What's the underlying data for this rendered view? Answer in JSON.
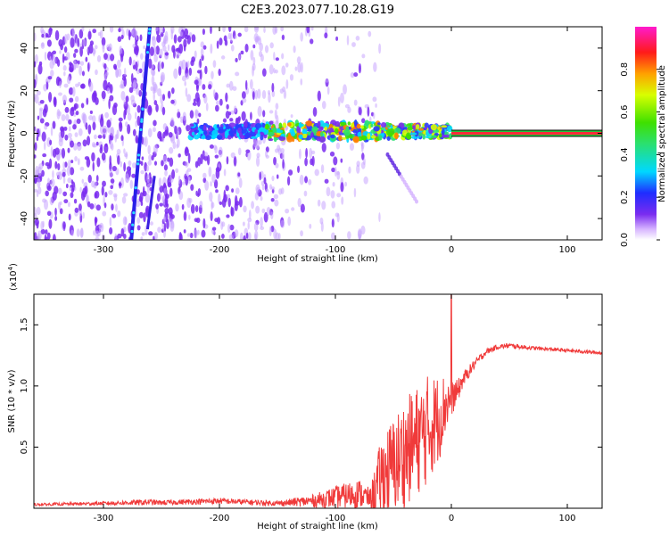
{
  "title": "C2E3.2023.077.10.28.G19",
  "colors": {
    "snr_line": "#f03a3a",
    "axis": "#000000",
    "speck": "#7a2cf0",
    "band_center": "#ff2a3a",
    "band_outer": "#27c23a"
  },
  "chart_data": [
    {
      "type": "heatmap",
      "name": "spectrogram",
      "xlabel": "Height of straight line (km)",
      "ylabel": "Frequency (Hz)",
      "xlim": [
        -360,
        130
      ],
      "ylim": [
        -50,
        50
      ],
      "xticks": [
        -300,
        -200,
        -100,
        0,
        100
      ],
      "yticks": [
        -40,
        -20,
        0,
        20,
        40
      ],
      "xtick_labels": [
        "-300",
        "-200",
        "-100",
        "0",
        "100"
      ],
      "ytick_labels": [
        "-40",
        "-20",
        "0",
        "20",
        "40"
      ],
      "colorbar": {
        "label": "Normalized spectral amplitude",
        "range": [
          0,
          1
        ],
        "ticks": [
          0.0,
          0.2,
          0.4,
          0.6,
          0.8
        ],
        "tick_labels": [
          "0.0",
          "0.2",
          "0.4",
          "0.6",
          "0.8"
        ]
      },
      "features": [
        {
          "name": "scatter noise",
          "x_range": [
            -360,
            -100
          ],
          "y_range": [
            -50,
            50
          ],
          "amplitude": 0.1
        },
        {
          "name": "sloped streak",
          "x_start": -276,
          "x_end": -260,
          "y_start": -50,
          "y_end": 50,
          "amplitude": 0.3
        },
        {
          "name": "secondary streak",
          "x_start": -262,
          "x_end": -256,
          "y_start": -45,
          "y_end": -20,
          "amplitude": 0.2
        },
        {
          "name": "carrier band",
          "x_range": [
            -225,
            0
          ],
          "center_freq": 1,
          "amplitude": 0.45
        },
        {
          "name": "tail branch",
          "x_start": -55,
          "x_end": -30,
          "y_start": -10,
          "y_end": -32,
          "amplitude": 0.15
        },
        {
          "name": "steady carrier",
          "x_range": [
            0,
            130
          ],
          "center_freq": 0,
          "amplitude": 0.98
        }
      ]
    },
    {
      "type": "line",
      "name": "snr",
      "xlabel": "Height of straight line (km)",
      "ylabel": "SNR (10 * v/v)",
      "exponent_label": "(x10",
      "exponent_power": "4",
      "exponent_close": ")",
      "xlim": [
        -360,
        130
      ],
      "ylim": [
        0,
        17500
      ],
      "xticks": [
        -300,
        -200,
        -100,
        0,
        100
      ],
      "yticks": [
        5000,
        10000,
        15000
      ],
      "xtick_labels": [
        "-300",
        "-200",
        "-100",
        "0",
        "100"
      ],
      "ytick_labels": [
        "0.5",
        "1.0",
        "1.5"
      ],
      "series": [
        {
          "name": "SNR",
          "x": [
            -360,
            -300,
            -260,
            -250,
            -200,
            -150,
            -120,
            -100,
            -80,
            -70,
            -60,
            -50,
            -40,
            -30,
            -20,
            -10,
            -5,
            0,
            5,
            10,
            20,
            30,
            40,
            50,
            70,
            100,
            130
          ],
          "y": [
            300,
            400,
            500,
            450,
            600,
            400,
            600,
            900,
            1200,
            800,
            2500,
            3500,
            4500,
            5500,
            6500,
            7500,
            8500,
            9000,
            9500,
            10500,
            11800,
            12800,
            13200,
            13300,
            13100,
            12900,
            12700
          ],
          "spread": [
            100,
            150,
            250,
            200,
            250,
            200,
            500,
            900,
            1200,
            800,
            3500,
            4000,
            4500,
            4500,
            4500,
            3500,
            2500,
            1500,
            1000,
            600,
            400,
            250,
            200,
            200,
            150,
            150,
            150
          ]
        }
      ],
      "peak": {
        "x": 0,
        "y": 17500
      }
    }
  ]
}
